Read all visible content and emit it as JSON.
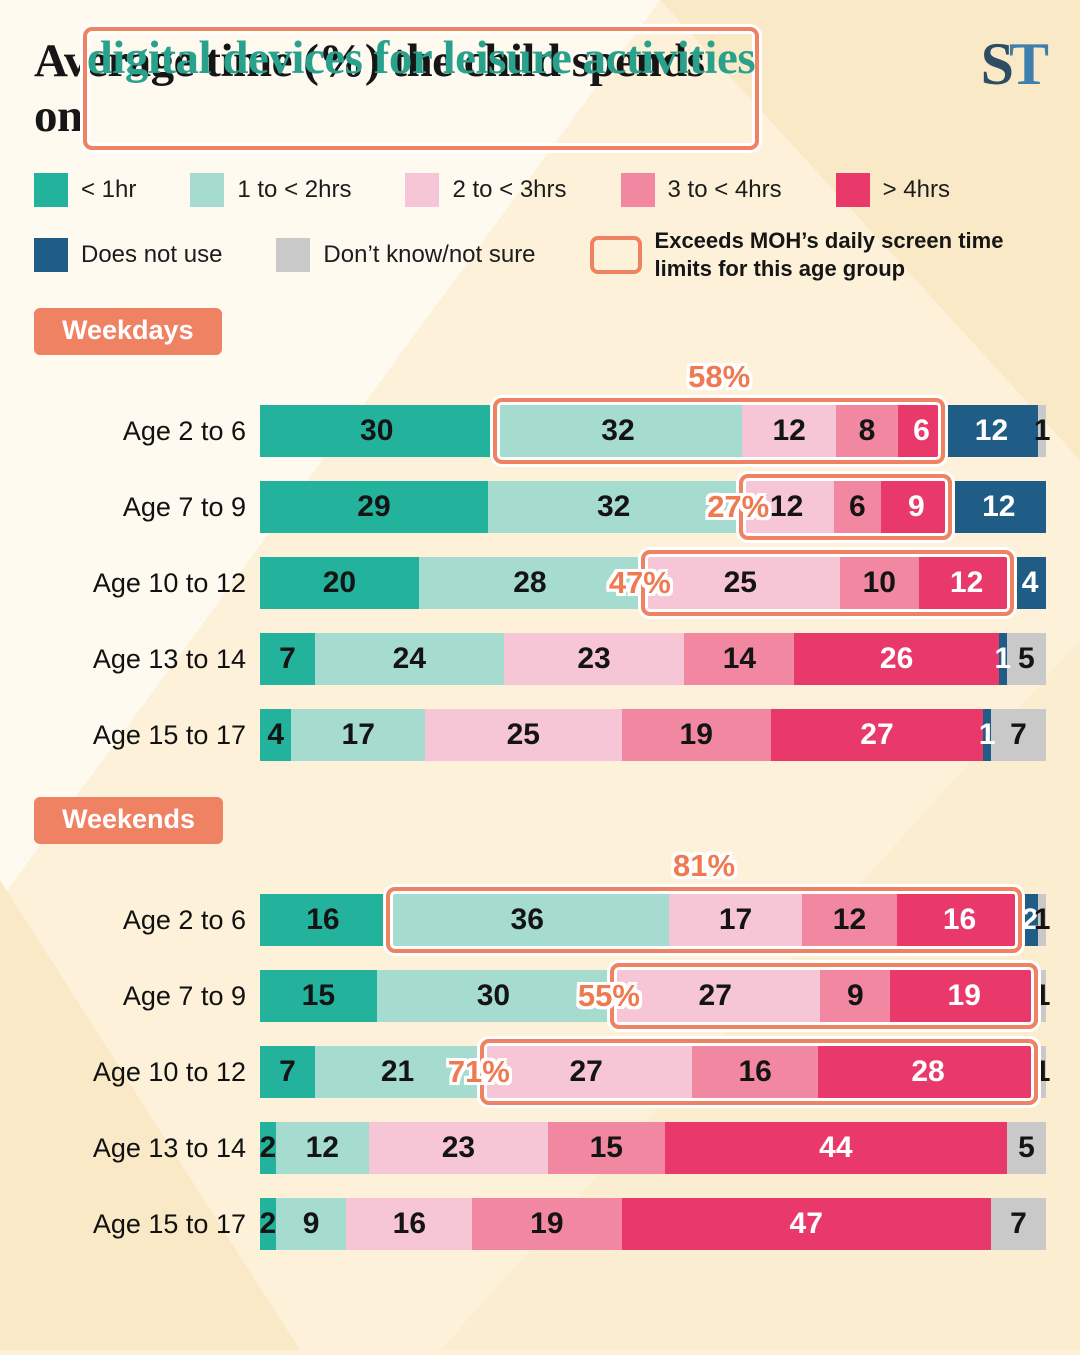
{
  "header": {
    "title_line1": "Average time (%) the child spends",
    "title_line2_prefix": "on",
    "title_line2_highlight": "digital devices for leisure activities",
    "title_highlight_color": "#2aa18d",
    "logo_s": "S",
    "logo_t": "T"
  },
  "legend": {
    "items": [
      {
        "label": "< 1hr",
        "color": "#23b29c"
      },
      {
        "label": "1 to < 2hrs",
        "color": "#a6dcd0"
      },
      {
        "label": "2 to < 3hrs",
        "color": "#f6c6d6"
      },
      {
        "label": "3 to < 4hrs",
        "color": "#f287a2"
      },
      {
        "label": "> 4hrs",
        "color": "#e9396b"
      },
      {
        "label": "Does not use",
        "color": "#1f5c86"
      },
      {
        "label": "Don’t know/not sure",
        "color": "#c9c9c9"
      }
    ],
    "exceeds_label": "Exceeds MOH’s daily screen time limits for this age group",
    "exceeds_color": "#f08264"
  },
  "chart_data": {
    "type": "bar",
    "orientation": "horizontal-stacked",
    "unit": "%",
    "xlim": [
      0,
      100
    ],
    "title": "Average time (%) the child spends on digital devices for leisure activities",
    "series_labels": [
      "< 1hr",
      "1 to < 2hrs",
      "2 to < 3hrs",
      "3 to < 4hrs",
      "> 4hrs",
      "Does not use",
      "Don’t know/not sure"
    ],
    "series_colors": [
      "#23b29c",
      "#a6dcd0",
      "#f6c6d6",
      "#f287a2",
      "#e9396b",
      "#1f5c86",
      "#c9c9c9"
    ],
    "label_text_colors": [
      "#141414",
      "#141414",
      "#141414",
      "#141414",
      "#ffffff",
      "#ffffff",
      "#141414"
    ],
    "highlight_color": "#f08264",
    "sections": [
      {
        "label": "Weekdays",
        "rows": [
          {
            "label": "Age 2 to 6",
            "values": [
              30,
              32,
              12,
              8,
              6,
              12,
              1
            ],
            "highlight": {
              "from": 1,
              "to": 4,
              "pct": "58%",
              "pos": "above"
            }
          },
          {
            "label": "Age 7 to 9",
            "values": [
              29,
              32,
              12,
              6,
              9,
              12,
              0
            ],
            "highlight": {
              "from": 2,
              "to": 4,
              "pct": "27%",
              "pos": "left"
            }
          },
          {
            "label": "Age 10 to 12",
            "values": [
              20,
              28,
              25,
              10,
              12,
              4,
              0
            ],
            "highlight": {
              "from": 2,
              "to": 4,
              "pct": "47%",
              "pos": "left"
            }
          },
          {
            "label": "Age 13 to 14",
            "values": [
              7,
              24,
              23,
              14,
              26,
              1,
              5
            ],
            "highlight": null
          },
          {
            "label": "Age 15 to 17",
            "values": [
              4,
              17,
              25,
              19,
              27,
              1,
              7
            ],
            "highlight": null
          }
        ]
      },
      {
        "label": "Weekends",
        "rows": [
          {
            "label": "Age 2 to 6",
            "values": [
              16,
              36,
              17,
              12,
              16,
              2,
              1
            ],
            "highlight": {
              "from": 1,
              "to": 4,
              "pct": "81%",
              "pos": "above"
            }
          },
          {
            "label": "Age 7 to 9",
            "values": [
              15,
              30,
              27,
              9,
              19,
              0,
              1
            ],
            "highlight": {
              "from": 2,
              "to": 4,
              "pct": "55%",
              "pos": "left"
            }
          },
          {
            "label": "Age 10 to 12",
            "values": [
              7,
              21,
              27,
              16,
              28,
              0,
              1
            ],
            "highlight": {
              "from": 2,
              "to": 4,
              "pct": "71%",
              "pos": "left"
            }
          },
          {
            "label": "Age 13 to 14",
            "values": [
              2,
              12,
              23,
              15,
              44,
              0,
              5
            ],
            "highlight": null
          },
          {
            "label": "Age 15 to 17",
            "values": [
              2,
              9,
              16,
              19,
              47,
              0,
              7
            ],
            "highlight": null
          }
        ]
      }
    ]
  }
}
